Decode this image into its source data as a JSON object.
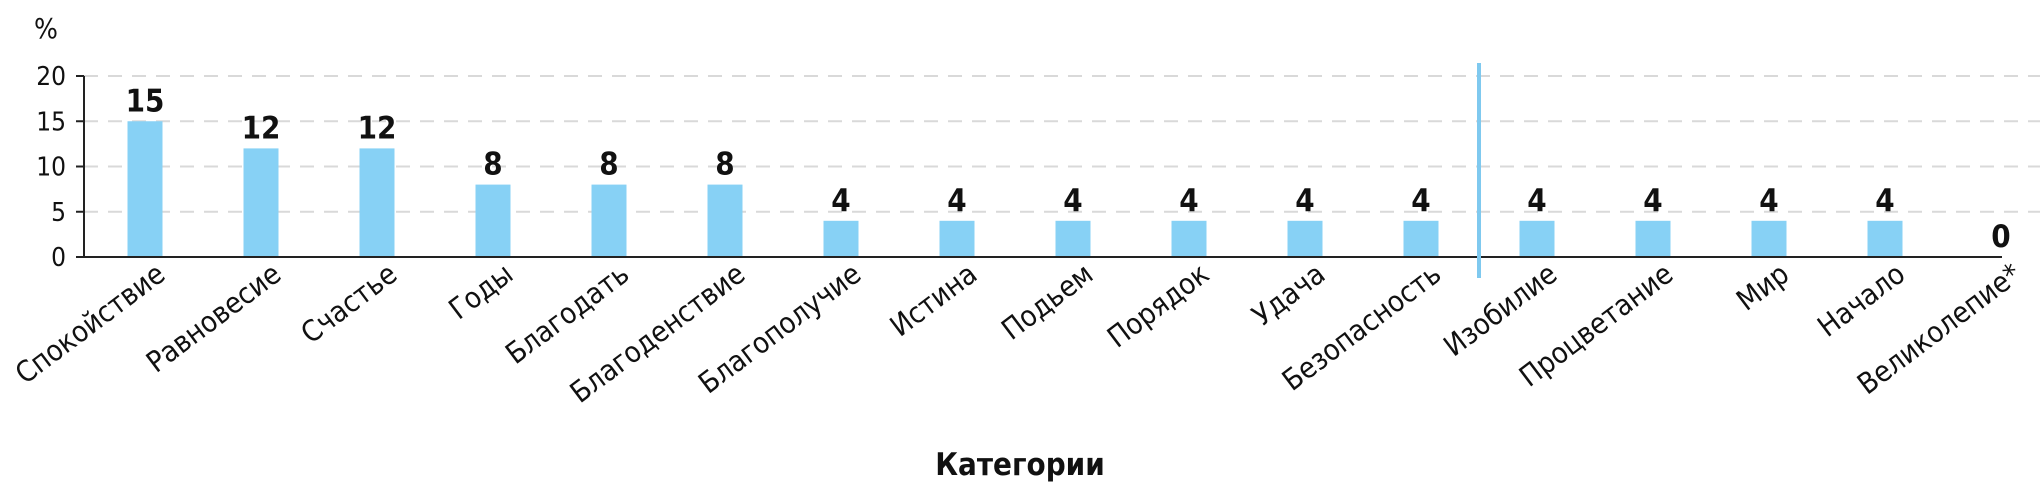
{
  "chart_data": {
    "type": "bar",
    "ylabel": "%",
    "xlabel": "Категории",
    "ylim": [
      0,
      20
    ],
    "yticks": [
      0,
      5,
      10,
      15,
      20
    ],
    "grid": true,
    "categories": [
      "Спокойствие",
      "Равновесие",
      "Счастье",
      "Годы",
      "Благодать",
      "Благоденствие",
      "Благополучие",
      "Истина",
      "Подьем",
      "Порядок",
      "Удача",
      "Безопасность",
      "Изобилие",
      "Процветание",
      "Мир",
      "Начало",
      "Великолепие*"
    ],
    "values": [
      15,
      12,
      12,
      8,
      8,
      8,
      4,
      4,
      4,
      4,
      4,
      4,
      4,
      4,
      4,
      4,
      0
    ],
    "data_labels": [
      "15",
      "12",
      "12",
      "8",
      "8",
      "8",
      "4",
      "4",
      "4",
      "4",
      "4",
      "4",
      "4",
      "4",
      "4",
      "4",
      "0"
    ],
    "separator_after_category": "Безопасность",
    "colors": {
      "bar": "#87d1f5",
      "separator": "#7fc9ef",
      "grid": "#d9d9d9",
      "axis": "#222222"
    }
  }
}
